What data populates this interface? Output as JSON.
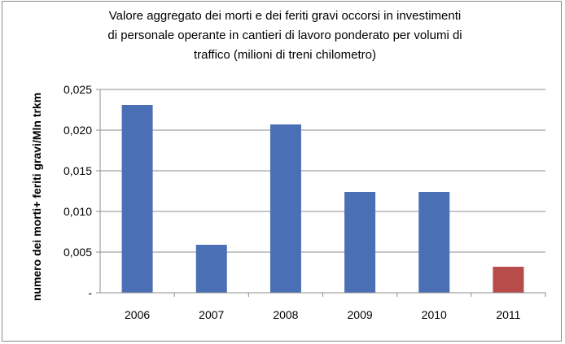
{
  "chart_data": {
    "type": "bar",
    "title_lines": [
      "Valore aggregato dei morti e dei feriti gravi occorsi in investimenti",
      "di personale operante in cantieri di lavoro ponderato per volumi di",
      "traffico (milioni di treni chilometro)"
    ],
    "ylabel": "numero dei morti+ feriti gravi/Mln trkm",
    "xlabel": "",
    "categories": [
      "2006",
      "2007",
      "2008",
      "2009",
      "2010",
      "2011"
    ],
    "values": [
      0.0231,
      0.0059,
      0.0207,
      0.0124,
      0.0124,
      0.0032
    ],
    "colors": [
      "#4a6fb5",
      "#4a6fb5",
      "#4a6fb5",
      "#4a6fb5",
      "#4a6fb5",
      "#b84c4a"
    ],
    "ylim": [
      0,
      0.025
    ],
    "yticks": [
      {
        "value": 0,
        "label": "-"
      },
      {
        "value": 0.005,
        "label": "0,005"
      },
      {
        "value": 0.01,
        "label": "0,010"
      },
      {
        "value": 0.015,
        "label": "0,015"
      },
      {
        "value": 0.02,
        "label": "0,020"
      },
      {
        "value": 0.025,
        "label": "0,025"
      }
    ],
    "grid": true,
    "legend": "none"
  }
}
